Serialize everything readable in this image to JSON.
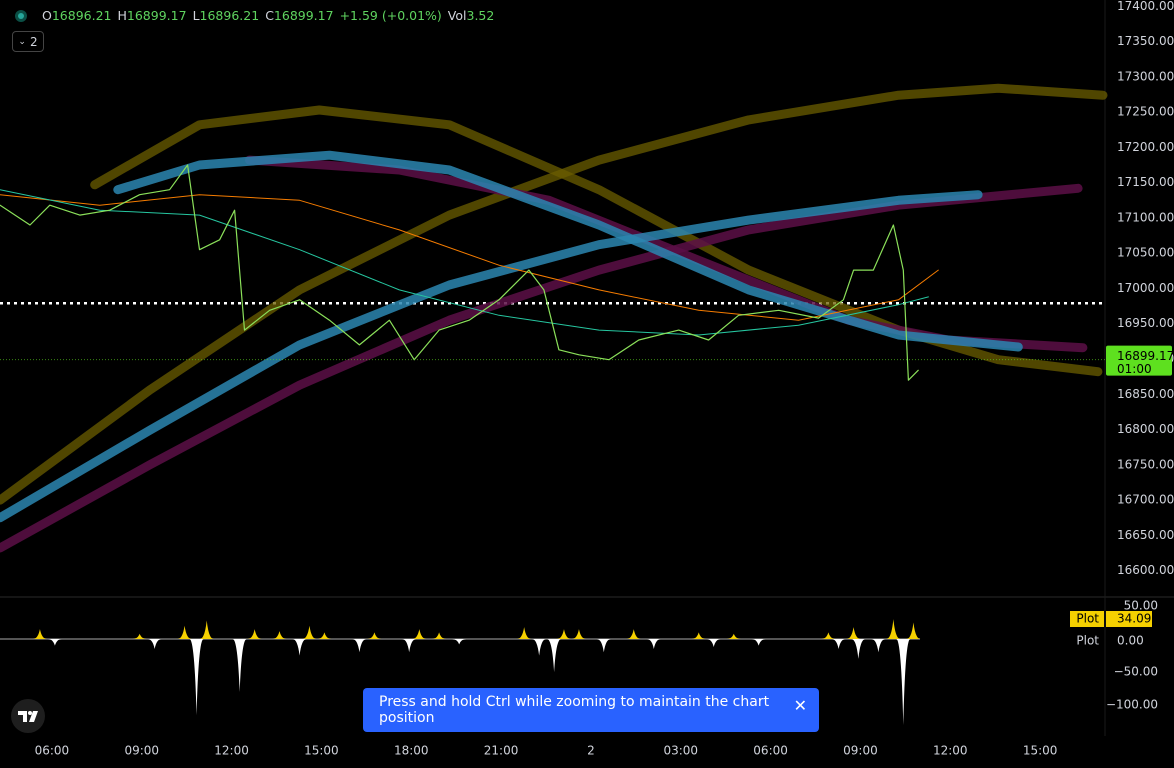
{
  "header": {
    "ohlc": [
      {
        "label": "O",
        "value": "16896.21"
      },
      {
        "label": "H",
        "value": "16899.17"
      },
      {
        "label": "L",
        "value": "16896.21"
      },
      {
        "label": "C",
        "value": "16899.17"
      }
    ],
    "change": "+1.59 (+0.01%)",
    "volume_label": "Vol",
    "volume": "3.52",
    "pane_count": "2"
  },
  "toast": {
    "text": "Press and hold Ctrl while zooming to maintain the chart position"
  },
  "chart_data": [
    {
      "type": "line",
      "xlim": [
        4.2667,
        41.1667
      ],
      "ylim": [
        16564,
        17409
      ],
      "xticks": [
        {
          "value": 6,
          "label": "06:00"
        },
        {
          "value": 9,
          "label": "09:00"
        },
        {
          "value": 12,
          "label": "12:00"
        },
        {
          "value": 15,
          "label": "15:00"
        },
        {
          "value": 18,
          "label": "18:00"
        },
        {
          "value": 21,
          "label": "21:00"
        },
        {
          "value": 24,
          "label": "2"
        },
        {
          "value": 27,
          "label": "03:00"
        },
        {
          "value": 30,
          "label": "06:00"
        },
        {
          "value": 33,
          "label": "09:00"
        },
        {
          "value": 36,
          "label": "12:00"
        },
        {
          "value": 39,
          "label": "15:00"
        }
      ],
      "yticks": [
        {
          "value": 16600,
          "label": "16600.00"
        },
        {
          "value": 16650,
          "label": "16650.00"
        },
        {
          "value": 16700,
          "label": "16700.00"
        },
        {
          "value": 16750,
          "label": "16750.00"
        },
        {
          "value": 16800,
          "label": "16800.00"
        },
        {
          "value": 16850,
          "label": "16850.00"
        },
        {
          "value": 16900,
          "label": "16900.00"
        },
        {
          "value": 16950,
          "label": "16950.00"
        },
        {
          "value": 17000,
          "label": "17000.00"
        },
        {
          "value": 17050,
          "label": "17050.00"
        },
        {
          "value": 17100,
          "label": "17100.00"
        },
        {
          "value": 17150,
          "label": "17150.00"
        },
        {
          "value": 17200,
          "label": "17200.00"
        },
        {
          "value": 17250,
          "label": "17250.00"
        },
        {
          "value": 17300,
          "label": "17300.00"
        },
        {
          "value": 17350,
          "label": "17350.00"
        },
        {
          "value": 17400,
          "label": "17400.00"
        }
      ],
      "grid": false,
      "last_price": 16899.17,
      "last_price_color": "#5ee01f",
      "countdown": "01:00",
      "hline": 16979,
      "series": [
        {
          "color": "#6b5e00",
          "width": 9,
          "opacity": 0.75,
          "x": [
            7.43,
            10.93,
            14.93,
            19.27,
            24.27,
            29.27,
            34.27,
            37.6,
            40.93
          ],
          "values": [
            17147,
            17232,
            17253,
            17232,
            17140,
            17026,
            16941,
            16899,
            16882
          ]
        },
        {
          "color": "#6b5e00",
          "width": 9,
          "opacity": 0.75,
          "x": [
            4.27,
            9.27,
            14.27,
            19.27,
            24.27,
            29.27,
            34.27,
            37.6,
            41.1
          ],
          "values": [
            16700,
            16856,
            16998,
            17104,
            17182,
            17239,
            17274,
            17284,
            17274
          ]
        },
        {
          "color": "#5c0f47",
          "width": 9,
          "opacity": 0.85,
          "x": [
            12.6,
            17.6,
            22.6,
            27.6,
            32.6,
            35.93,
            40.43
          ],
          "values": [
            17182,
            17168,
            17125,
            17040,
            16955,
            16927,
            16916
          ]
        },
        {
          "color": "#5c0f47",
          "width": 9,
          "opacity": 0.85,
          "x": [
            4.27,
            9.27,
            14.27,
            19.27,
            24.27,
            29.27,
            34.27,
            40.27
          ],
          "values": [
            16632,
            16750,
            16863,
            16955,
            17026,
            17083,
            17118,
            17142
          ]
        },
        {
          "color": "#2b86b0",
          "width": 9,
          "opacity": 0.85,
          "x": [
            8.2,
            10.93,
            15.27,
            19.27,
            24.27,
            29.27,
            34.27,
            38.27
          ],
          "values": [
            17140,
            17175,
            17189,
            17168,
            17090,
            16998,
            16934,
            16917
          ]
        },
        {
          "color": "#2b86b0",
          "width": 9,
          "opacity": 0.85,
          "x": [
            4.27,
            9.27,
            14.27,
            19.27,
            24.27,
            29.27,
            34.27,
            36.93
          ],
          "values": [
            16675,
            16799,
            16920,
            17005,
            17062,
            17097,
            17125,
            17133
          ]
        },
        {
          "color": "#f57c00",
          "width": 1,
          "opacity": 1,
          "x": [
            4.27,
            7.6,
            10.93,
            14.27,
            17.6,
            20.93,
            24.27,
            27.6,
            30.93,
            34.27,
            35.6
          ],
          "values": [
            17133,
            17118,
            17133,
            17125,
            17083,
            17033,
            16998,
            16969,
            16955,
            16984,
            17026
          ]
        },
        {
          "color": "#26c6a0",
          "width": 1,
          "opacity": 1,
          "x": [
            4.27,
            7.6,
            10.93,
            14.27,
            17.6,
            20.93,
            24.27,
            27.6,
            30.93,
            34.27,
            35.27
          ],
          "values": [
            17140,
            17111,
            17104,
            17055,
            16998,
            16962,
            16941,
            16934,
            16948,
            16977,
            16988
          ]
        },
        {
          "color": "#8be05a",
          "width": 1.2,
          "opacity": 1,
          "x": [
            4.27,
            5.27,
            5.93,
            6.93,
            7.93,
            8.93,
            9.93,
            10.53,
            10.93,
            11.6,
            12.1,
            12.43,
            13.27,
            14.27,
            15.27,
            16.27,
            17.27,
            18.1,
            18.93,
            19.93,
            20.93,
            21.93,
            22.43,
            22.93,
            23.6,
            24.6,
            25.6,
            26.93,
            27.93,
            28.93,
            30.27,
            31.6,
            32.43,
            32.77,
            33.43,
            34.1,
            34.43,
            34.6,
            34.93
          ],
          "values": [
            17118,
            17090,
            17118,
            17104,
            17111,
            17133,
            17140,
            17175,
            17055,
            17069,
            17111,
            16941,
            16969,
            16984,
            16955,
            16920,
            16955,
            16899,
            16941,
            16955,
            16984,
            17026,
            16998,
            16913,
            16906,
            16899,
            16927,
            16941,
            16927,
            16962,
            16969,
            16958,
            16984,
            17026,
            17026,
            17090,
            17026,
            16870,
            16884
          ]
        }
      ]
    },
    {
      "type": "bar",
      "xlim": [
        4.2667,
        41.1667
      ],
      "ylim": [
        -145,
        62
      ],
      "yticks": [
        {
          "value": 50,
          "label": "50.00"
        },
        {
          "value": -50,
          "label": "−50.00"
        },
        {
          "value": -100,
          "label": "−100.00"
        }
      ],
      "pos_color": "#f5d000",
      "neg_color": "#ffffff",
      "x": [
        5.6,
        6.1,
        8.93,
        9.43,
        10.43,
        10.83,
        11.17,
        12.27,
        12.77,
        13.6,
        14.27,
        14.6,
        15.1,
        16.27,
        16.77,
        17.93,
        18.27,
        18.93,
        19.6,
        21.77,
        22.27,
        22.77,
        23.1,
        23.6,
        24.43,
        25.43,
        26.1,
        27.6,
        28.1,
        28.77,
        29.6,
        31.93,
        32.27,
        32.77,
        32.93,
        33.6,
        34.1,
        34.43,
        34.77
      ],
      "values": [
        15,
        -10,
        8,
        -15,
        20,
        -115,
        28,
        -80,
        15,
        12,
        -25,
        20,
        10,
        -20,
        10,
        -20,
        15,
        10,
        -8,
        18,
        -25,
        -50,
        15,
        15,
        -20,
        15,
        -15,
        10,
        -12,
        8,
        -10,
        10,
        -15,
        18,
        -30,
        -20,
        30,
        -130,
        25
      ],
      "legend": [
        {
          "name": "Plot",
          "value": "34.09"
        },
        {
          "name": "Plot",
          "value": "0.00"
        }
      ]
    }
  ]
}
